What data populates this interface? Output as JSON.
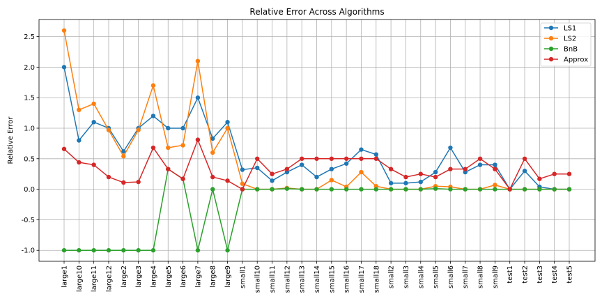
{
  "chart_data": {
    "type": "line",
    "title": "Relative Error Across Algorithms",
    "xlabel": "",
    "ylabel": "Relative Error",
    "ylim": [
      -1.18,
      2.78
    ],
    "yticks": [
      "-1.0",
      "-0.5",
      "0.0",
      "0.5",
      "1.0",
      "1.5",
      "2.0",
      "2.5"
    ],
    "ytick_values": [
      -1.0,
      -0.5,
      0.0,
      0.5,
      1.0,
      1.5,
      2.0,
      2.5
    ],
    "grid": true,
    "legend_position": "top-right",
    "categories": [
      "large1",
      "large10",
      "large11",
      "large12",
      "large2",
      "large3",
      "large4",
      "large5",
      "large6",
      "large7",
      "large8",
      "large9",
      "small1",
      "small10",
      "small11",
      "small12",
      "small13",
      "small14",
      "small15",
      "small16",
      "small17",
      "small18",
      "small2",
      "small3",
      "small4",
      "small5",
      "small6",
      "small7",
      "small8",
      "small9",
      "test1",
      "test2",
      "test3",
      "test4",
      "test5"
    ],
    "series": [
      {
        "name": "LS1",
        "color": "#1f77b4",
        "values": [
          2.0,
          0.8,
          1.1,
          1.0,
          0.62,
          1.0,
          1.2,
          1.0,
          1.0,
          1.5,
          0.83,
          1.1,
          0.32,
          0.35,
          0.14,
          0.28,
          0.4,
          0.2,
          0.33,
          0.42,
          0.65,
          0.57,
          0.1,
          0.1,
          0.12,
          0.28,
          0.68,
          0.28,
          0.4,
          0.4,
          0.0,
          0.3,
          0.04,
          0.0,
          0.0
        ]
      },
      {
        "name": "LS2",
        "color": "#ff7f0e",
        "values": [
          2.6,
          1.3,
          1.4,
          0.97,
          0.54,
          0.97,
          1.7,
          0.68,
          0.72,
          2.1,
          0.6,
          1.0,
          0.09,
          0.0,
          0.0,
          0.02,
          0.0,
          0.0,
          0.15,
          0.04,
          0.28,
          0.05,
          0.0,
          0.0,
          0.0,
          0.05,
          0.04,
          0.0,
          0.0,
          0.07,
          0.0,
          0.0,
          0.0,
          0.0,
          0.0
        ]
      },
      {
        "name": "BnB",
        "color": "#2ca02c",
        "values": [
          -1.0,
          -1.0,
          -1.0,
          -1.0,
          -1.0,
          -1.0,
          -1.0,
          0.33,
          0.17,
          -1.0,
          0.0,
          -1.0,
          0.0,
          0.0,
          0.0,
          0.01,
          0.0,
          0.0,
          0.0,
          0.0,
          0.0,
          0.0,
          0.0,
          0.0,
          0.0,
          0.01,
          0.0,
          0.0,
          0.0,
          0.0,
          0.0,
          0.0,
          0.0,
          0.0,
          0.0
        ]
      },
      {
        "name": "Approx",
        "color": "#d62728",
        "values": [
          0.66,
          0.44,
          0.4,
          0.2,
          0.11,
          0.12,
          0.68,
          0.33,
          0.17,
          0.81,
          0.2,
          0.14,
          0.0,
          0.5,
          0.25,
          0.33,
          0.5,
          0.5,
          0.5,
          0.5,
          0.5,
          0.5,
          0.33,
          0.2,
          0.25,
          0.2,
          0.33,
          0.33,
          0.5,
          0.33,
          0.0,
          0.5,
          0.17,
          0.25,
          0.25
        ]
      }
    ]
  }
}
